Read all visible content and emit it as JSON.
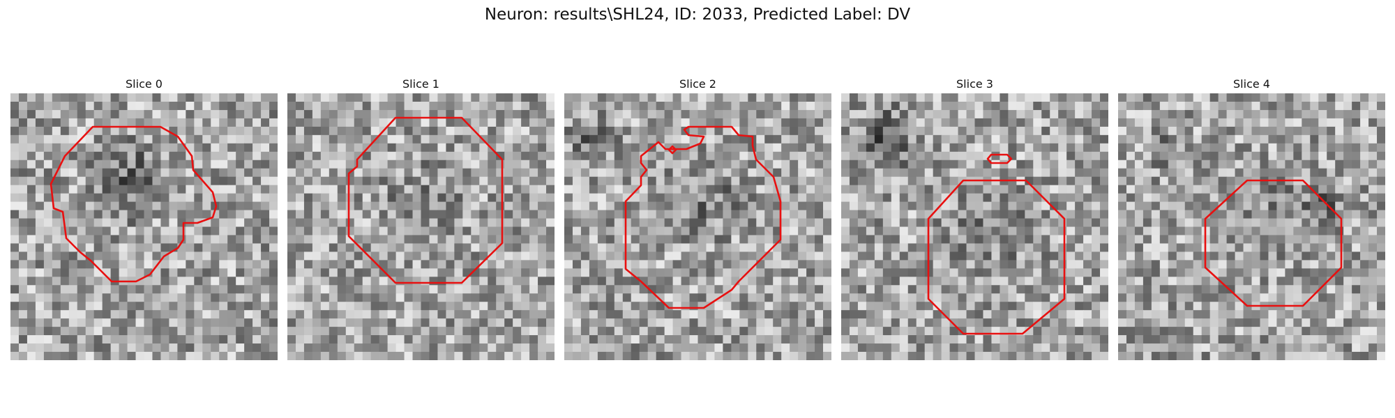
{
  "figure": {
    "title": "Neuron: results\\SHL24, ID: 2033, Predicted Label: DV",
    "contour_color": "#e81010"
  },
  "slices": [
    {
      "title": "Slice 0"
    },
    {
      "title": "Slice 1"
    },
    {
      "title": "Slice 2"
    },
    {
      "title": "Slice 3"
    },
    {
      "title": "Slice 4"
    }
  ]
}
